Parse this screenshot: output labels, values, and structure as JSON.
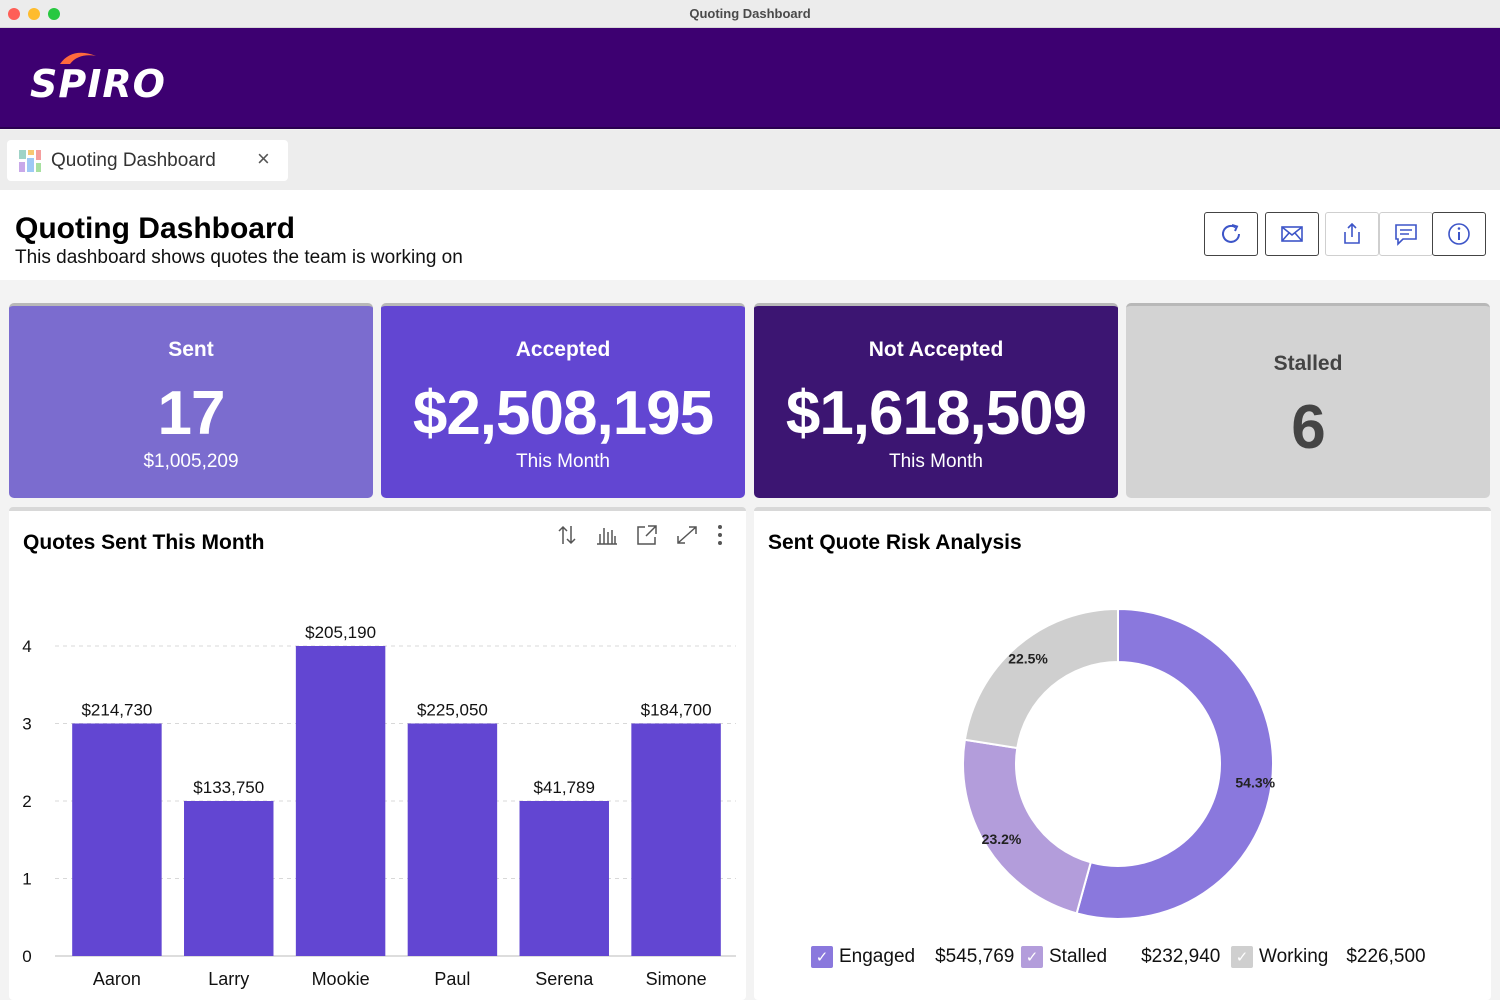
{
  "window": {
    "title": "Quoting Dashboard"
  },
  "brand": {
    "name": "SPIRO"
  },
  "tab": {
    "label": "Quoting Dashboard",
    "close": "×"
  },
  "page": {
    "title": "Quoting Dashboard",
    "subtitle": "This dashboard shows quotes the team is working on"
  },
  "toolbar": {
    "icons": [
      "refresh-icon",
      "email-icon",
      "share-icon",
      "comment-icon",
      "info-icon"
    ]
  },
  "kpis": [
    {
      "label": "Sent",
      "value": "17",
      "sub": "$1,005,209",
      "color": "#7b6ccf"
    },
    {
      "label": "Accepted",
      "value": "$2,508,195",
      "sub": "This Month",
      "color": "#6246d2"
    },
    {
      "label": "Not Accepted",
      "value": "$1,618,509",
      "sub": "This Month",
      "color": "#3c1572"
    },
    {
      "label": "Stalled",
      "value": "6",
      "sub": "",
      "color": "#d3d3d3"
    }
  ],
  "bar_panel": {
    "title": "Quotes Sent This Month"
  },
  "donut_panel": {
    "title": "Sent Quote Risk Analysis"
  },
  "chart_data": [
    {
      "type": "bar",
      "title": "Quotes Sent This Month",
      "categories": [
        "Aaron",
        "Larry",
        "Mookie",
        "Paul",
        "Serena",
        "Simone"
      ],
      "values": [
        3,
        2,
        4,
        3,
        2,
        3
      ],
      "data_labels": [
        "$214,730",
        "$133,750",
        "$205,190",
        "$225,050",
        "$41,789",
        "$184,700"
      ],
      "yticks": [
        0,
        1,
        2,
        3,
        4
      ],
      "ylim": [
        0,
        4
      ],
      "grid": true,
      "color": "#6246d2"
    },
    {
      "type": "pie",
      "title": "Sent Quote Risk Analysis",
      "donut": true,
      "slices": [
        {
          "name": "Engaged",
          "amount": "$545,769",
          "percent": 54.3,
          "label": "54.3%",
          "color": "#8a78dd"
        },
        {
          "name": "Stalled",
          "amount": "$232,940",
          "percent": 23.2,
          "label": "23.2%",
          "color": "#b39ddb"
        },
        {
          "name": "Working",
          "amount": "$226,500",
          "percent": 22.5,
          "label": "22.5%",
          "color": "#cfcfcf"
        }
      ],
      "legend": "bottom"
    }
  ]
}
